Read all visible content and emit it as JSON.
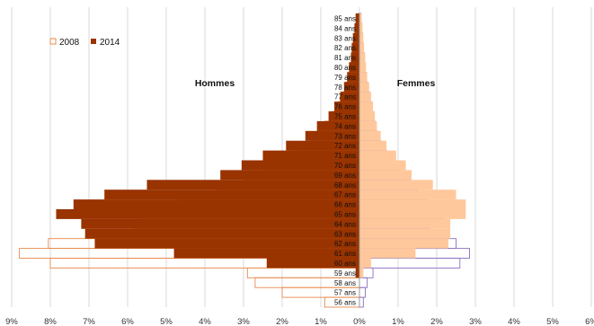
{
  "chart_data": {
    "type": "population-pyramid",
    "title": "",
    "left_label": "Hommes",
    "right_label": "Femmes",
    "legend": [
      {
        "label": "2008",
        "style": "outline",
        "color_male": "#e8894a",
        "color_female": "#8a6fc0"
      },
      {
        "label": "2014",
        "style": "filled",
        "color_male": "#993300",
        "color_female": "#ffc89c"
      }
    ],
    "legend_position": "top-left",
    "x_ticks": [
      "9%",
      "8%",
      "7%",
      "6%",
      "5%",
      "4%",
      "3%",
      "2%",
      "1%",
      "0%",
      "1%",
      "2%",
      "3%",
      "4%",
      "5%",
      "6%"
    ],
    "x_range": [
      -9,
      6
    ],
    "gridlines": true,
    "ages": [
      "56 ans",
      "57 ans",
      "58 ans",
      "59 ans",
      "60 ans",
      "61 ans",
      "62 ans",
      "63 ans",
      "64 ans",
      "65 ans",
      "66 ans",
      "67 ans",
      "68 ans",
      "69 ans",
      "70 ans",
      "71 ans",
      "72 ans",
      "73 ans",
      "74 ans",
      "75 ans",
      "76 ans",
      "77 ans",
      "78 ans",
      "79 ans",
      "80 ans",
      "81 ans",
      "82 ans",
      "83 ans",
      "84 ans",
      "85 ans"
    ],
    "series": [
      {
        "name": "2014",
        "sex": "Hommes",
        "values": [
          0,
          0,
          0,
          0.1,
          2.4,
          4.8,
          6.85,
          7.1,
          7.2,
          7.85,
          7.4,
          6.6,
          5.5,
          3.6,
          3.05,
          2.5,
          1.9,
          1.4,
          1.1,
          0.8,
          0.65,
          0.5,
          0.4,
          0.32,
          0.27,
          0.22,
          0.2,
          0.17,
          0.13,
          0.1
        ]
      },
      {
        "name": "2014",
        "sex": "Femmes",
        "values": [
          0,
          0,
          0,
          0.1,
          0.3,
          1.45,
          2.3,
          2.35,
          2.35,
          2.75,
          2.75,
          2.5,
          1.9,
          1.35,
          1.2,
          0.95,
          0.7,
          0.55,
          0.45,
          0.4,
          0.35,
          0.3,
          0.25,
          0.2,
          0.17,
          0.15,
          0.12,
          0.1,
          0.08,
          0.06
        ]
      },
      {
        "name": "2008",
        "sex": "Hommes",
        "values": [
          0.9,
          2.0,
          2.7,
          2.9,
          8.0,
          8.8,
          8.05,
          5.85,
          5.3,
          5.6,
          4.7,
          3.7,
          3.0,
          2.5,
          2.1,
          1.6,
          1.25,
          1.1,
          0.9,
          0.7,
          0.55,
          0.45,
          0.35,
          0.3,
          0.25,
          0.2,
          0.15,
          0.12,
          0.1,
          0.05
        ]
      },
      {
        "name": "2008",
        "sex": "Femmes",
        "values": [
          0.1,
          0.15,
          0.2,
          0.35,
          2.6,
          2.85,
          2.5,
          1.8,
          1.65,
          2.2,
          1.8,
          1.5,
          1.3,
          1.05,
          0.8,
          0.7,
          0.55,
          0.45,
          0.4,
          0.35,
          0.3,
          0.25,
          0.2,
          0.17,
          0.14,
          0.12,
          0.1,
          0.08,
          0.06,
          0.04
        ]
      }
    ]
  }
}
